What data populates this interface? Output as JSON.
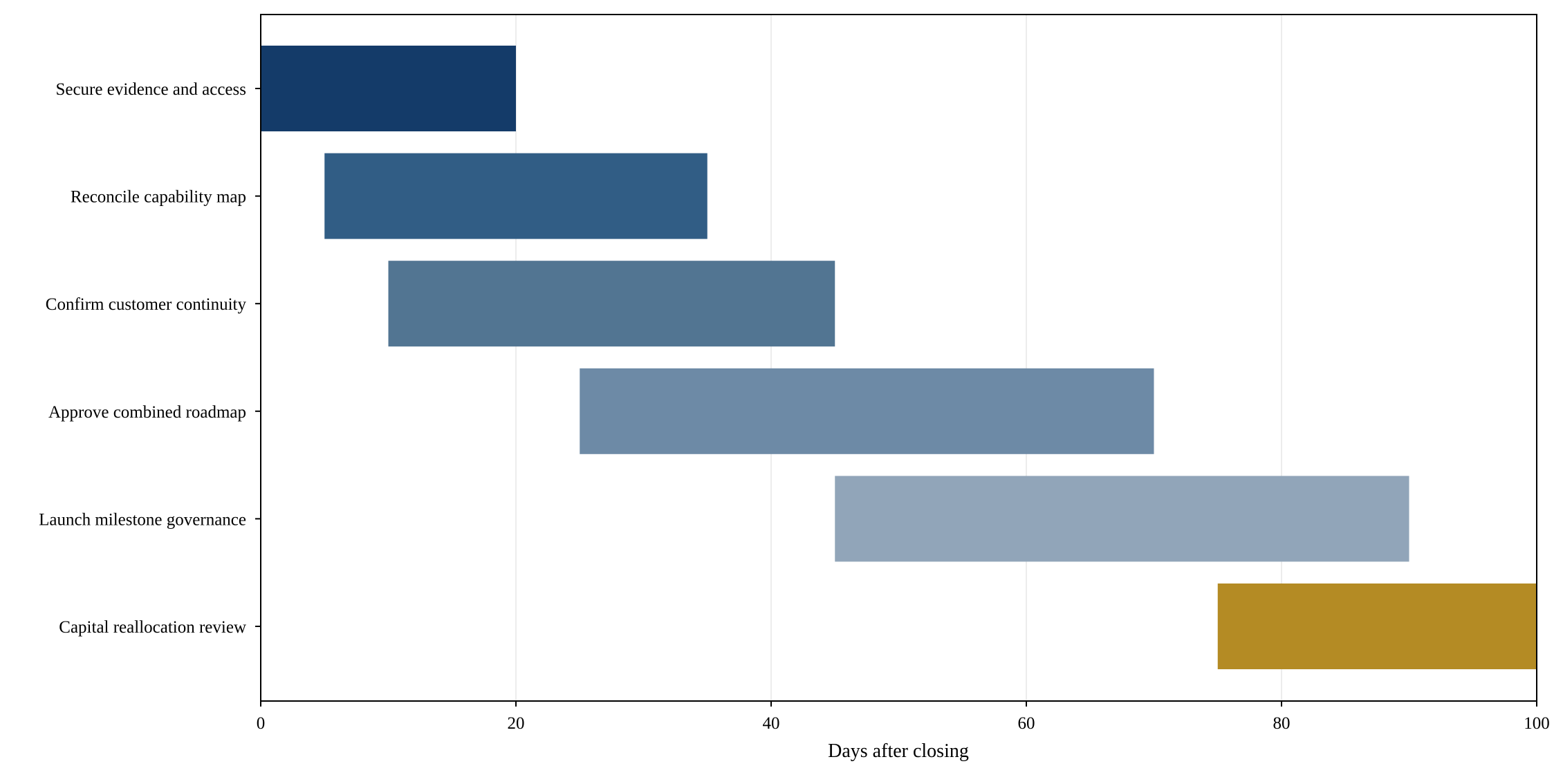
{
  "chart_data": {
    "type": "bar",
    "orientation": "horizontal",
    "chart_style": "gantt",
    "title": "",
    "xlabel": "Days after closing",
    "ylabel": "",
    "xlim": [
      0,
      100
    ],
    "xticks": [
      0,
      20,
      40,
      60,
      80,
      100
    ],
    "grid": "vertical",
    "legend": "none",
    "tasks": [
      {
        "name": "Secure evidence and access",
        "start": 0,
        "end": 20,
        "color": "#143b69"
      },
      {
        "name": "Reconcile capability map",
        "start": 5,
        "end": 35,
        "color": "#315d85"
      },
      {
        "name": "Confirm customer continuity",
        "start": 10,
        "end": 45,
        "color": "#527592"
      },
      {
        "name": "Approve combined roadmap",
        "start": 25,
        "end": 70,
        "color": "#6d8aa6"
      },
      {
        "name": "Launch milestone governance",
        "start": 45,
        "end": 90,
        "color": "#91a5b9"
      },
      {
        "name": "Capital reallocation review",
        "start": 75,
        "end": 100,
        "color": "#b48b24"
      }
    ]
  }
}
